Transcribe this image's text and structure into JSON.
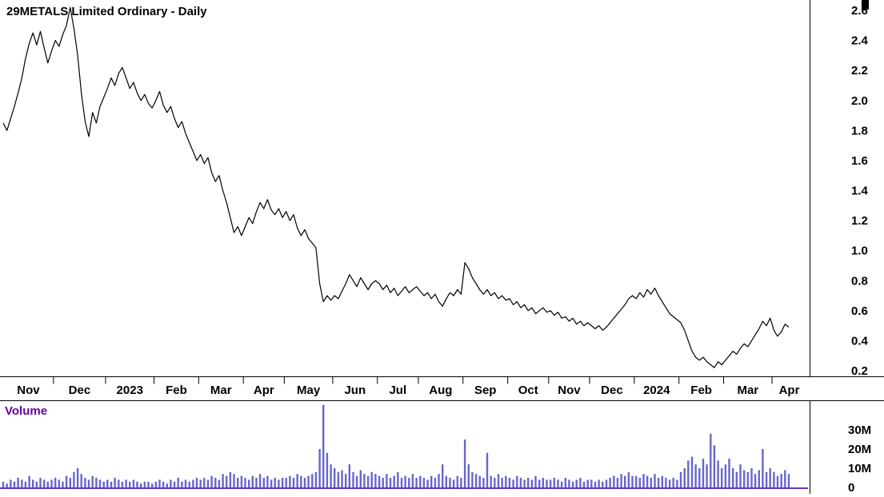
{
  "title": "29METALS Limited Ordinary - Daily",
  "volume_panel": {
    "label": "Volume"
  },
  "colors": {
    "price_line": "#000000",
    "axis": "#000000",
    "text": "#000000",
    "volume_bar": "#6666cc",
    "volume_zero_line": "#6633cc",
    "volume_title": "#660099"
  },
  "chart_data": {
    "type": "line",
    "title": "29METALS Limited Ordinary - Daily",
    "xlabel": "",
    "ylabel": "",
    "grid": false,
    "legend_position": "none",
    "x_axis": {
      "tick_labels": [
        "Nov",
        "Dec",
        "2023",
        "Feb",
        "Mar",
        "Apr",
        "May",
        "Jun",
        "Jul",
        "Aug",
        "Sep",
        "Oct",
        "Nov",
        "Dec",
        "2024",
        "Feb",
        "Mar",
        "Apr"
      ],
      "points_per_label": [
        14,
        14,
        13,
        12,
        12,
        11,
        13,
        12,
        11,
        12,
        12,
        11,
        11,
        12,
        12,
        12,
        13,
        5
      ]
    },
    "price_axis": {
      "ylim": [
        0.2,
        2.6
      ],
      "ticks": [
        {
          "label": "2.6",
          "value": 2.6
        },
        {
          "label": "2.4",
          "value": 2.4
        },
        {
          "label": "2.2",
          "value": 2.2
        },
        {
          "label": "2.0",
          "value": 2.0
        },
        {
          "label": "1.8",
          "value": 1.8
        },
        {
          "label": "1.6",
          "value": 1.6
        },
        {
          "label": "1.4",
          "value": 1.4
        },
        {
          "label": "1.2",
          "value": 1.2
        },
        {
          "label": "1.0",
          "value": 1.0
        },
        {
          "label": "0.8",
          "value": 0.8
        },
        {
          "label": "0.6",
          "value": 0.6
        },
        {
          "label": "0.4",
          "value": 0.4
        },
        {
          "label": "0.2",
          "value": 0.2
        }
      ]
    },
    "volume_axis": {
      "ylim_millions": [
        0,
        45
      ],
      "ticks": [
        {
          "label": "30M",
          "value": 30
        },
        {
          "label": "20M",
          "value": 20
        },
        {
          "label": "10M",
          "value": 10
        },
        {
          "label": "0",
          "value": 0
        }
      ]
    },
    "series": [
      {
        "name": "price",
        "type": "line",
        "color": "#000000",
        "values": [
          1.85,
          1.8,
          1.88,
          1.96,
          2.05,
          2.15,
          2.28,
          2.38,
          2.45,
          2.37,
          2.46,
          2.35,
          2.25,
          2.33,
          2.4,
          2.36,
          2.44,
          2.5,
          2.62,
          2.48,
          2.3,
          2.05,
          1.86,
          1.76,
          1.92,
          1.85,
          1.96,
          2.02,
          2.08,
          2.15,
          2.1,
          2.18,
          2.22,
          2.15,
          2.08,
          2.12,
          2.05,
          2.0,
          2.04,
          1.98,
          1.95,
          2.0,
          2.06,
          1.97,
          1.92,
          1.96,
          1.88,
          1.82,
          1.86,
          1.78,
          1.72,
          1.66,
          1.6,
          1.64,
          1.58,
          1.62,
          1.52,
          1.46,
          1.5,
          1.4,
          1.32,
          1.22,
          1.12,
          1.16,
          1.1,
          1.16,
          1.22,
          1.18,
          1.26,
          1.32,
          1.28,
          1.34,
          1.27,
          1.24,
          1.28,
          1.22,
          1.26,
          1.2,
          1.24,
          1.15,
          1.1,
          1.14,
          1.08,
          1.05,
          1.02,
          0.78,
          0.66,
          0.7,
          0.67,
          0.7,
          0.68,
          0.73,
          0.78,
          0.84,
          0.8,
          0.76,
          0.82,
          0.78,
          0.74,
          0.78,
          0.8,
          0.78,
          0.74,
          0.77,
          0.72,
          0.75,
          0.7,
          0.73,
          0.76,
          0.72,
          0.74,
          0.76,
          0.73,
          0.7,
          0.72,
          0.68,
          0.71,
          0.66,
          0.63,
          0.68,
          0.72,
          0.7,
          0.74,
          0.71,
          0.92,
          0.88,
          0.82,
          0.78,
          0.74,
          0.71,
          0.74,
          0.7,
          0.72,
          0.68,
          0.7,
          0.67,
          0.68,
          0.64,
          0.66,
          0.62,
          0.64,
          0.6,
          0.62,
          0.58,
          0.6,
          0.62,
          0.59,
          0.6,
          0.57,
          0.59,
          0.55,
          0.56,
          0.53,
          0.55,
          0.51,
          0.53,
          0.5,
          0.52,
          0.5,
          0.48,
          0.5,
          0.47,
          0.49,
          0.52,
          0.55,
          0.58,
          0.61,
          0.64,
          0.68,
          0.7,
          0.68,
          0.72,
          0.69,
          0.74,
          0.71,
          0.75,
          0.7,
          0.66,
          0.62,
          0.58,
          0.56,
          0.54,
          0.52,
          0.47,
          0.4,
          0.33,
          0.29,
          0.27,
          0.29,
          0.26,
          0.24,
          0.22,
          0.26,
          0.24,
          0.27,
          0.3,
          0.33,
          0.31,
          0.35,
          0.38,
          0.36,
          0.4,
          0.44,
          0.48,
          0.53,
          0.5,
          0.55,
          0.47,
          0.43,
          0.46,
          0.51,
          0.49
        ]
      }
    ],
    "volume": {
      "name": "volume",
      "type": "bar",
      "unit": "millions",
      "color": "#6666cc",
      "values": [
        3,
        2,
        4,
        3,
        5,
        4,
        3,
        6,
        4,
        3,
        5,
        4,
        3,
        4,
        5,
        4,
        3,
        6,
        5,
        8,
        10,
        7,
        5,
        4,
        6,
        5,
        4,
        3,
        4,
        3,
        5,
        4,
        3,
        4,
        3,
        4,
        3,
        2,
        3,
        3,
        2,
        3,
        4,
        3,
        2,
        4,
        3,
        5,
        3,
        4,
        3,
        4,
        5,
        4,
        5,
        4,
        6,
        5,
        4,
        7,
        6,
        8,
        7,
        5,
        6,
        5,
        4,
        6,
        5,
        7,
        5,
        6,
        4,
        5,
        4,
        5,
        5,
        6,
        5,
        7,
        6,
        5,
        6,
        7,
        8,
        20,
        43,
        18,
        12,
        10,
        8,
        9,
        7,
        12,
        8,
        6,
        9,
        7,
        6,
        8,
        7,
        6,
        5,
        7,
        5,
        6,
        8,
        5,
        6,
        5,
        7,
        5,
        6,
        5,
        4,
        6,
        5,
        7,
        12,
        6,
        5,
        4,
        6,
        5,
        25,
        12,
        8,
        7,
        6,
        5,
        18,
        6,
        5,
        7,
        5,
        6,
        5,
        4,
        6,
        5,
        4,
        5,
        4,
        6,
        4,
        5,
        4,
        4,
        5,
        4,
        3,
        5,
        4,
        3,
        4,
        5,
        3,
        4,
        4,
        3,
        4,
        3,
        4,
        5,
        6,
        5,
        7,
        6,
        8,
        6,
        6,
        5,
        7,
        6,
        5,
        7,
        5,
        6,
        5,
        4,
        5,
        4,
        8,
        10,
        14,
        16,
        12,
        10,
        15,
        12,
        28,
        22,
        14,
        10,
        12,
        15,
        10,
        8,
        12,
        9,
        8,
        10,
        7,
        9,
        20,
        8,
        10,
        8,
        6,
        7,
        9,
        7
      ]
    }
  }
}
